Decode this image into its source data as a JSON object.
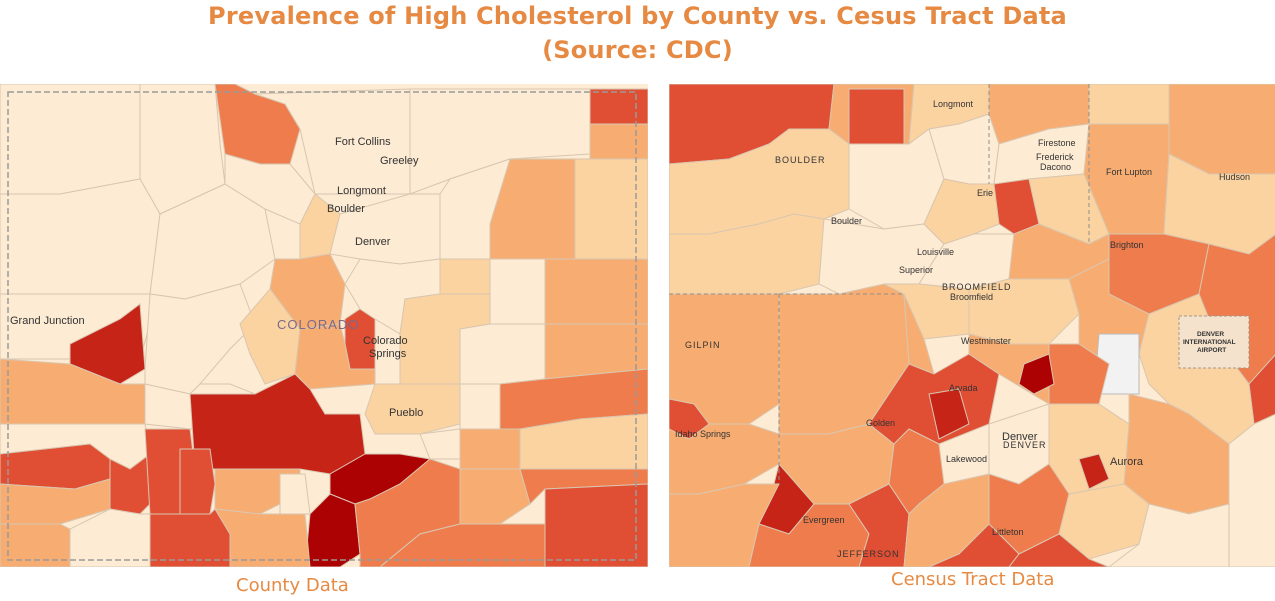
{
  "title_line1": "Prevalence of High Cholesterol by County vs. Cesus Tract Data",
  "title_line2": "(Source: CDC)",
  "left_panel": {
    "caption": "County Data",
    "state_label": "COLORADO",
    "cities": [
      "Fort Collins",
      "Greeley",
      "Longmont",
      "Boulder",
      "Denver",
      "Grand Junction",
      "Colorado",
      "Springs",
      "Pueblo"
    ]
  },
  "right_panel": {
    "caption": "Census Tract Data",
    "places": [
      "Longmont",
      "BOULDER",
      "Boulder",
      "Firestone",
      "Frederick",
      "Dacono",
      "Fort Lupton",
      "Hudson",
      "Erie",
      "Louisville",
      "Superior",
      "Brighton",
      "BROOMFIELD",
      "Broomfield",
      "Westminster",
      "Arvada",
      "GILPIN",
      "Idaho Springs",
      "Golden",
      "Denver",
      "DENVER",
      "Lakewood",
      "Aurora",
      "Evergreen",
      "JEFFERSON",
      "Littleton"
    ],
    "airport_label": [
      "DENVER",
      "INTERNATIONAL",
      "AIRPORT"
    ]
  },
  "colors": {
    "title": "#e68a43",
    "level1": "#fdebd3",
    "level2": "#fbd3a0",
    "level3": "#f7ad72",
    "level4": "#ef7c4c",
    "level5": "#e04e34",
    "level6": "#c72418",
    "level7": "#ad0204"
  }
}
